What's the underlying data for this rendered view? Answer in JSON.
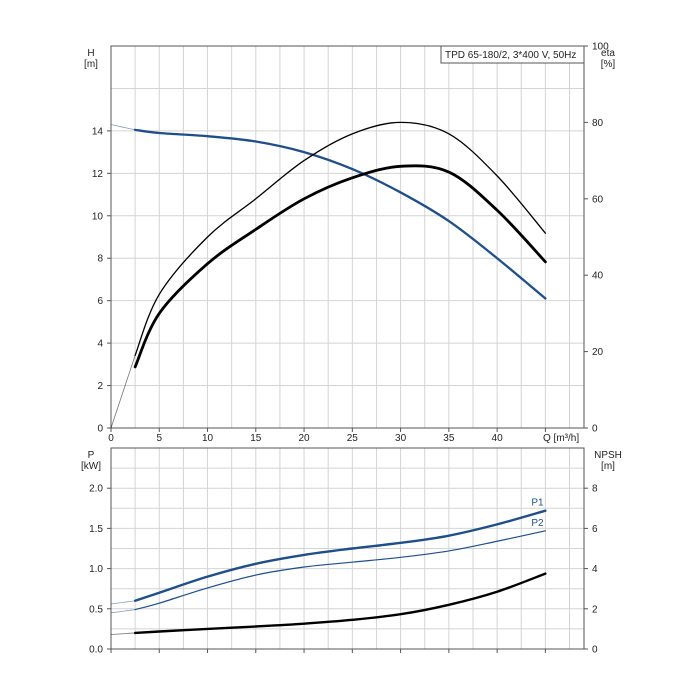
{
  "chart_data": [
    {
      "type": "line",
      "title": "TPD 65-180/2, 3*400 V, 50Hz",
      "xlabel": "Q [m³/h]",
      "ylabel_left": "H",
      "ylabel_left_unit": "[m]",
      "ylabel_right": "eta",
      "ylabel_right_unit": "[%]",
      "xlim": [
        0,
        49
      ],
      "ylim_left": [
        0,
        18
      ],
      "ylim_right": [
        0,
        100
      ],
      "x_ticks": [
        0,
        5,
        10,
        15,
        20,
        25,
        30,
        35,
        40
      ],
      "y_ticks_left": [
        0,
        2,
        4,
        6,
        8,
        10,
        12,
        14
      ],
      "y_ticks_right": [
        0,
        20,
        40,
        60,
        80,
        100
      ],
      "grid": true,
      "series": [
        {
          "axis": "left",
          "color": "#1f4e89",
          "x": [
            0,
            2.5,
            5,
            10,
            15,
            20,
            25,
            30,
            35,
            40,
            45
          ],
          "y": [
            14.3,
            14.05,
            13.9,
            13.75,
            13.5,
            13.0,
            12.2,
            11.1,
            9.75,
            8.0,
            6.1
          ]
        },
        {
          "axis": "right",
          "color": "#000000",
          "x": [
            0,
            2.5,
            5,
            10,
            15,
            20,
            25,
            30,
            35,
            40,
            45
          ],
          "y": [
            0,
            19,
            35,
            50,
            60,
            70,
            77,
            80,
            77,
            66,
            51
          ]
        },
        {
          "axis": "right",
          "color": "#000000",
          "x": [
            2.5,
            5,
            10,
            15,
            20,
            25,
            30,
            35,
            40,
            45
          ],
          "y": [
            16,
            30,
            43,
            52,
            60,
            65.5,
            68.5,
            67,
            57,
            43.5
          ]
        }
      ]
    },
    {
      "type": "line",
      "ylabel_left": "P",
      "ylabel_left_unit": "[kW]",
      "ylabel_right": "NPSH",
      "ylabel_right_unit": "[m]",
      "xlim": [
        0,
        49
      ],
      "ylim_left": [
        0,
        2.5
      ],
      "ylim_right": [
        0,
        10
      ],
      "y_ticks_left": [
        "0.0",
        "0.5",
        "1.0",
        "1.5",
        "2.0"
      ],
      "y_ticks_right": [
        0,
        2,
        4,
        6,
        8
      ],
      "grid": true,
      "series": [
        {
          "name": "P1",
          "axis": "left",
          "color": "#1f4e89",
          "x": [
            0,
            2.5,
            5,
            10,
            15,
            20,
            25,
            30,
            35,
            40,
            45
          ],
          "y": [
            0.56,
            0.6,
            0.7,
            0.9,
            1.06,
            1.17,
            1.25,
            1.32,
            1.41,
            1.55,
            1.72
          ]
        },
        {
          "name": "P2",
          "axis": "left",
          "color": "#1f4e89",
          "x": [
            0,
            2.5,
            5,
            10,
            15,
            20,
            25,
            30,
            35,
            40,
            45
          ],
          "y": [
            0.45,
            0.49,
            0.57,
            0.76,
            0.92,
            1.02,
            1.08,
            1.14,
            1.22,
            1.34,
            1.47
          ]
        },
        {
          "axis": "right",
          "color": "#000000",
          "x": [
            0,
            2.5,
            5,
            10,
            15,
            20,
            25,
            30,
            35,
            40,
            45
          ],
          "y": [
            0.72,
            0.8,
            0.87,
            1.0,
            1.12,
            1.26,
            1.45,
            1.73,
            2.2,
            2.85,
            3.75
          ]
        }
      ]
    }
  ]
}
